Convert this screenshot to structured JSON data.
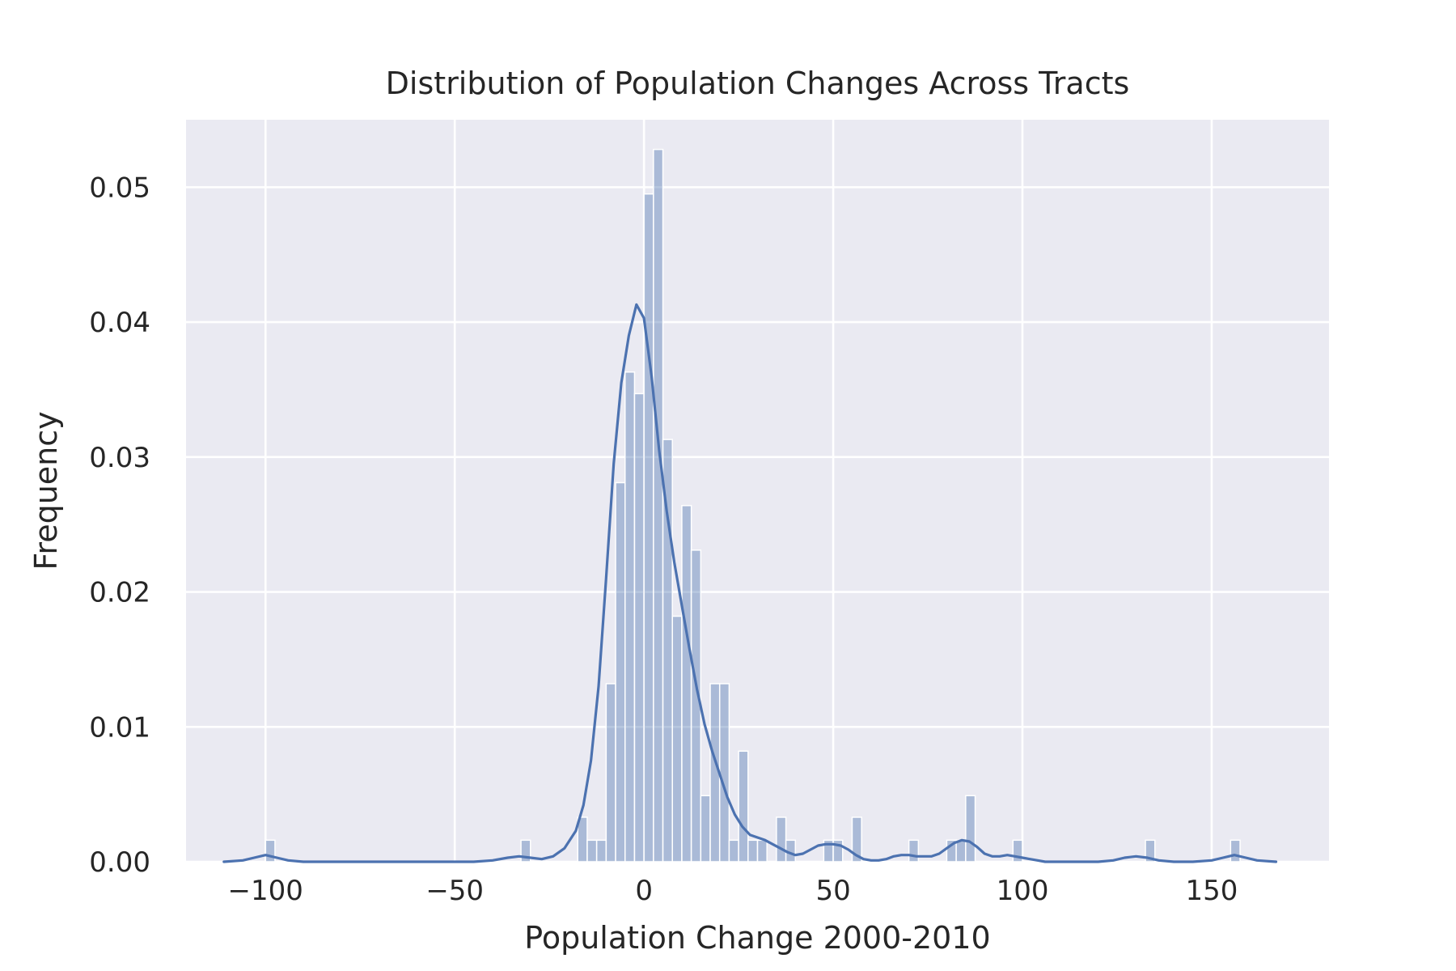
{
  "chart_data": {
    "type": "bar",
    "title": "Distribution of Population Changes Across Tracts",
    "xlabel": "Population Change 2000-2010",
    "ylabel": "Frequency",
    "xlim": [
      -121,
      181
    ],
    "ylim": [
      0,
      0.055
    ],
    "grid": true,
    "legend": "none",
    "xticks": [
      -100,
      -50,
      0,
      50,
      100,
      150
    ],
    "xtick_labels": [
      "−100",
      "−50",
      "0",
      "50",
      "100",
      "150"
    ],
    "yticks": [
      0.0,
      0.01,
      0.02,
      0.03,
      0.04,
      0.05
    ],
    "ytick_labels": [
      "0.00",
      "0.01",
      "0.02",
      "0.03",
      "0.04",
      "0.05"
    ],
    "colors": {
      "background": "#eaeaf2",
      "grid": "#ffffff",
      "bar_fill": "#4c72b0",
      "bar_opacity": 0.4,
      "kde_line": "#4c72b0"
    },
    "histogram": {
      "bin_width": 2.5,
      "bars": [
        {
          "x": -100.0,
          "y": 0.0016
        },
        {
          "x": -32.5,
          "y": 0.0016
        },
        {
          "x": -17.5,
          "y": 0.0033
        },
        {
          "x": -15.0,
          "y": 0.0016
        },
        {
          "x": -12.5,
          "y": 0.0016
        },
        {
          "x": -10.0,
          "y": 0.0132
        },
        {
          "x": -7.5,
          "y": 0.0281
        },
        {
          "x": -5.0,
          "y": 0.0363
        },
        {
          "x": -2.5,
          "y": 0.0347
        },
        {
          "x": 0.0,
          "y": 0.0495
        },
        {
          "x": 2.5,
          "y": 0.0528
        },
        {
          "x": 5.0,
          "y": 0.0313
        },
        {
          "x": 7.5,
          "y": 0.0182
        },
        {
          "x": 10.0,
          "y": 0.0264
        },
        {
          "x": 12.5,
          "y": 0.0231
        },
        {
          "x": 15.0,
          "y": 0.0049
        },
        {
          "x": 17.5,
          "y": 0.0132
        },
        {
          "x": 20.0,
          "y": 0.0132
        },
        {
          "x": 22.5,
          "y": 0.0016
        },
        {
          "x": 25.0,
          "y": 0.0082
        },
        {
          "x": 27.5,
          "y": 0.0016
        },
        {
          "x": 30.0,
          "y": 0.0016
        },
        {
          "x": 35.0,
          "y": 0.0033
        },
        {
          "x": 37.5,
          "y": 0.0016
        },
        {
          "x": 47.5,
          "y": 0.0016
        },
        {
          "x": 50.0,
          "y": 0.0016
        },
        {
          "x": 55.0,
          "y": 0.0033
        },
        {
          "x": 70.0,
          "y": 0.0016
        },
        {
          "x": 80.0,
          "y": 0.0016
        },
        {
          "x": 82.5,
          "y": 0.0016
        },
        {
          "x": 85.0,
          "y": 0.0049
        },
        {
          "x": 97.5,
          "y": 0.0016
        },
        {
          "x": 132.5,
          "y": 0.0016
        },
        {
          "x": 155.0,
          "y": 0.0016
        }
      ]
    },
    "kde": {
      "x": [
        -111,
        -106,
        -103,
        -100,
        -97,
        -94,
        -90,
        -80,
        -60,
        -45,
        -40,
        -36,
        -33,
        -30,
        -27,
        -24,
        -21,
        -18,
        -16,
        -14,
        -12,
        -10,
        -8,
        -6,
        -4,
        -2,
        0,
        2,
        4,
        6,
        8,
        10,
        12,
        14,
        16,
        18,
        20,
        22,
        24,
        26,
        28,
        30,
        32,
        34,
        36,
        38,
        40,
        42,
        44,
        46,
        48,
        50,
        52,
        54,
        56,
        58,
        60,
        62,
        64,
        66,
        68,
        70,
        72,
        74,
        76,
        78,
        80,
        82,
        84,
        86,
        88,
        90,
        92,
        94,
        96,
        98,
        100,
        102,
        104,
        106,
        110,
        115,
        120,
        124,
        127,
        130,
        133,
        136,
        140,
        145,
        150,
        153,
        156,
        159,
        162,
        167
      ],
      "y": [
        0.0,
        0.0001,
        0.0003,
        0.0005,
        0.0003,
        0.0001,
        0.0,
        0.0,
        0.0,
        0.0,
        0.0001,
        0.0003,
        0.0004,
        0.0003,
        0.0002,
        0.0004,
        0.001,
        0.0023,
        0.0042,
        0.0075,
        0.013,
        0.021,
        0.0295,
        0.0355,
        0.039,
        0.0413,
        0.0403,
        0.036,
        0.0305,
        0.026,
        0.0222,
        0.019,
        0.0158,
        0.0128,
        0.0102,
        0.0082,
        0.0065,
        0.0048,
        0.0035,
        0.0026,
        0.002,
        0.0018,
        0.0016,
        0.0013,
        0.001,
        0.0007,
        0.0005,
        0.0006,
        0.0009,
        0.0012,
        0.0013,
        0.0013,
        0.0012,
        0.0009,
        0.0005,
        0.0002,
        0.0001,
        0.0001,
        0.0002,
        0.0004,
        0.0005,
        0.0005,
        0.0004,
        0.0004,
        0.0004,
        0.0006,
        0.001,
        0.0014,
        0.0016,
        0.0015,
        0.0011,
        0.0006,
        0.0004,
        0.0004,
        0.0005,
        0.0004,
        0.0003,
        0.0002,
        0.0001,
        0.0,
        0.0,
        0.0,
        0.0,
        0.0001,
        0.0003,
        0.0004,
        0.0003,
        0.0001,
        0.0,
        0.0,
        0.0001,
        0.0003,
        0.0005,
        0.0003,
        0.0001,
        0.0
      ]
    }
  }
}
